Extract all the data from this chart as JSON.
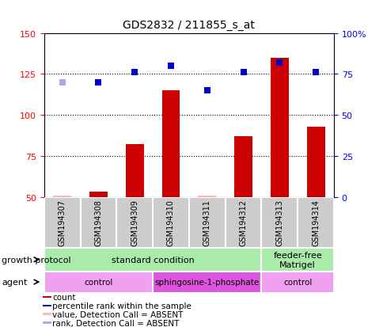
{
  "title": "GDS2832 / 211855_s_at",
  "samples": [
    "GSM194307",
    "GSM194308",
    "GSM194309",
    "GSM194310",
    "GSM194311",
    "GSM194312",
    "GSM194313",
    "GSM194314"
  ],
  "count_values": [
    51,
    53,
    82,
    115,
    51,
    87,
    135,
    93
  ],
  "count_absent": [
    true,
    false,
    false,
    false,
    true,
    false,
    false,
    false
  ],
  "rank_values": [
    70,
    70,
    76,
    80,
    65,
    76,
    82,
    76
  ],
  "rank_absent": [
    true,
    false,
    false,
    false,
    false,
    false,
    false,
    false
  ],
  "ylim_left": [
    50,
    150
  ],
  "ylim_right": [
    0,
    100
  ],
  "yticks_left": [
    50,
    75,
    100,
    125,
    150
  ],
  "yticks_right": [
    0,
    25,
    50,
    75,
    100
  ],
  "bar_color": "#cc0000",
  "bar_absent_color": "#ffbbbb",
  "dot_color": "#0000cc",
  "dot_absent_color": "#aaaaee",
  "dot_size": 40,
  "bar_width": 0.5,
  "gp_groups": [
    {
      "label": "standard condition",
      "start": 0,
      "end": 6,
      "color": "#aaeaaa"
    },
    {
      "label": "feeder-free\nMatrigel",
      "start": 6,
      "end": 8,
      "color": "#aaeaaa"
    }
  ],
  "ag_groups": [
    {
      "label": "control",
      "start": 0,
      "end": 3,
      "color": "#f0a0f0"
    },
    {
      "label": "sphingosine-1-phosphate",
      "start": 3,
      "end": 6,
      "color": "#dd55dd"
    },
    {
      "label": "control",
      "start": 6,
      "end": 8,
      "color": "#f0a0f0"
    }
  ],
  "legend_items": [
    {
      "label": "count",
      "color": "#cc0000"
    },
    {
      "label": "percentile rank within the sample",
      "color": "#0000cc"
    },
    {
      "label": "value, Detection Call = ABSENT",
      "color": "#ffbbbb"
    },
    {
      "label": "rank, Detection Call = ABSENT",
      "color": "#aaaaee"
    }
  ],
  "title_fontsize": 10,
  "tick_fontsize": 8,
  "label_fontsize": 7,
  "legend_fontsize": 7.5,
  "row_label_fontsize": 8
}
